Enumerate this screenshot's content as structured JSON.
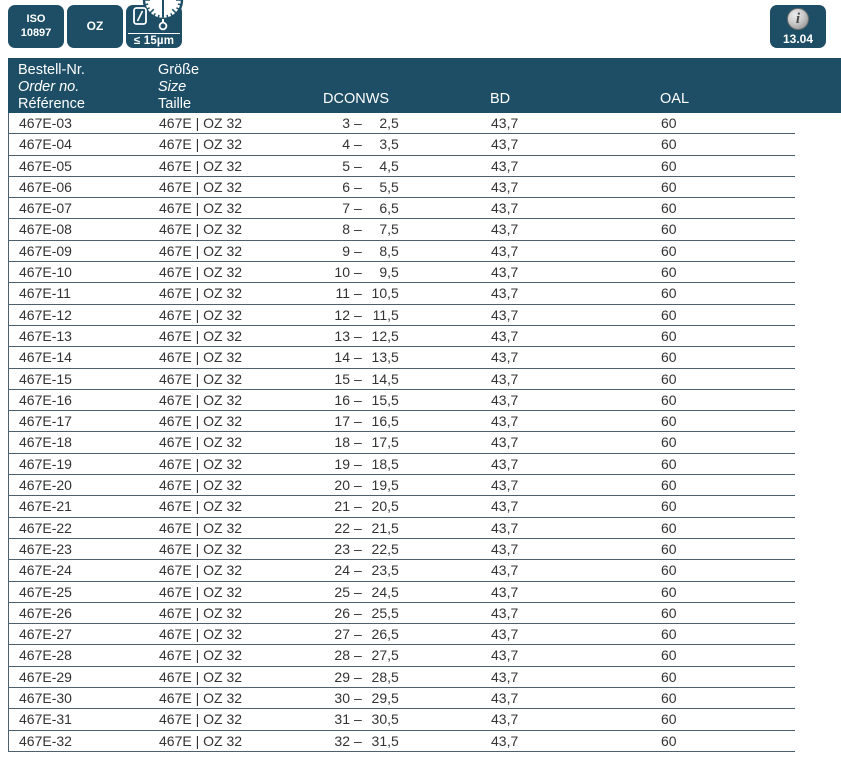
{
  "colors": {
    "navy": "#1d4e66"
  },
  "badges": {
    "iso": {
      "line1": "ISO",
      "line2": "10897"
    },
    "oz": "OZ",
    "runout_limit": "≤ 15µm",
    "info_symbol": "i",
    "info_version": "13.04"
  },
  "table": {
    "header": {
      "order": [
        "Bestell-Nr.",
        "Order no.",
        "Référence"
      ],
      "size": [
        "Größe",
        "Size",
        "Taille"
      ],
      "dconws": "DCONWS",
      "bd": "BD",
      "oal": "OAL"
    },
    "dash": "–",
    "rows": [
      {
        "order_no": "467E-03",
        "size": "467E | OZ 32",
        "from": "3",
        "to": "2,5",
        "bd": "43,7",
        "oal": "60"
      },
      {
        "order_no": "467E-04",
        "size": "467E | OZ 32",
        "from": "4",
        "to": "3,5",
        "bd": "43,7",
        "oal": "60"
      },
      {
        "order_no": "467E-05",
        "size": "467E | OZ 32",
        "from": "5",
        "to": "4,5",
        "bd": "43,7",
        "oal": "60"
      },
      {
        "order_no": "467E-06",
        "size": "467E | OZ 32",
        "from": "6",
        "to": "5,5",
        "bd": "43,7",
        "oal": "60"
      },
      {
        "order_no": "467E-07",
        "size": "467E | OZ 32",
        "from": "7",
        "to": "6,5",
        "bd": "43,7",
        "oal": "60"
      },
      {
        "order_no": "467E-08",
        "size": "467E | OZ 32",
        "from": "8",
        "to": "7,5",
        "bd": "43,7",
        "oal": "60"
      },
      {
        "order_no": "467E-09",
        "size": "467E | OZ 32",
        "from": "9",
        "to": "8,5",
        "bd": "43,7",
        "oal": "60"
      },
      {
        "order_no": "467E-10",
        "size": "467E | OZ 32",
        "from": "10",
        "to": "9,5",
        "bd": "43,7",
        "oal": "60"
      },
      {
        "order_no": "467E-11",
        "size": "467E | OZ 32",
        "from": "11",
        "to": "10,5",
        "bd": "43,7",
        "oal": "60"
      },
      {
        "order_no": "467E-12",
        "size": "467E | OZ 32",
        "from": "12",
        "to": "11,5",
        "bd": "43,7",
        "oal": "60"
      },
      {
        "order_no": "467E-13",
        "size": "467E | OZ 32",
        "from": "13",
        "to": "12,5",
        "bd": "43,7",
        "oal": "60"
      },
      {
        "order_no": "467E-14",
        "size": "467E | OZ 32",
        "from": "14",
        "to": "13,5",
        "bd": "43,7",
        "oal": "60"
      },
      {
        "order_no": "467E-15",
        "size": "467E | OZ 32",
        "from": "15",
        "to": "14,5",
        "bd": "43,7",
        "oal": "60"
      },
      {
        "order_no": "467E-16",
        "size": "467E | OZ 32",
        "from": "16",
        "to": "15,5",
        "bd": "43,7",
        "oal": "60"
      },
      {
        "order_no": "467E-17",
        "size": "467E | OZ 32",
        "from": "17",
        "to": "16,5",
        "bd": "43,7",
        "oal": "60"
      },
      {
        "order_no": "467E-18",
        "size": "467E | OZ 32",
        "from": "18",
        "to": "17,5",
        "bd": "43,7",
        "oal": "60"
      },
      {
        "order_no": "467E-19",
        "size": "467E | OZ 32",
        "from": "19",
        "to": "18,5",
        "bd": "43,7",
        "oal": "60"
      },
      {
        "order_no": "467E-20",
        "size": "467E | OZ 32",
        "from": "20",
        "to": "19,5",
        "bd": "43,7",
        "oal": "60"
      },
      {
        "order_no": "467E-21",
        "size": "467E | OZ 32",
        "from": "21",
        "to": "20,5",
        "bd": "43,7",
        "oal": "60"
      },
      {
        "order_no": "467E-22",
        "size": "467E | OZ 32",
        "from": "22",
        "to": "21,5",
        "bd": "43,7",
        "oal": "60"
      },
      {
        "order_no": "467E-23",
        "size": "467E | OZ 32",
        "from": "23",
        "to": "22,5",
        "bd": "43,7",
        "oal": "60"
      },
      {
        "order_no": "467E-24",
        "size": "467E | OZ 32",
        "from": "24",
        "to": "23,5",
        "bd": "43,7",
        "oal": "60"
      },
      {
        "order_no": "467E-25",
        "size": "467E | OZ 32",
        "from": "25",
        "to": "24,5",
        "bd": "43,7",
        "oal": "60"
      },
      {
        "order_no": "467E-26",
        "size": "467E | OZ 32",
        "from": "26",
        "to": "25,5",
        "bd": "43,7",
        "oal": "60"
      },
      {
        "order_no": "467E-27",
        "size": "467E | OZ 32",
        "from": "27",
        "to": "26,5",
        "bd": "43,7",
        "oal": "60"
      },
      {
        "order_no": "467E-28",
        "size": "467E | OZ 32",
        "from": "28",
        "to": "27,5",
        "bd": "43,7",
        "oal": "60"
      },
      {
        "order_no": "467E-29",
        "size": "467E | OZ 32",
        "from": "29",
        "to": "28,5",
        "bd": "43,7",
        "oal": "60"
      },
      {
        "order_no": "467E-30",
        "size": "467E | OZ 32",
        "from": "30",
        "to": "29,5",
        "bd": "43,7",
        "oal": "60"
      },
      {
        "order_no": "467E-31",
        "size": "467E | OZ 32",
        "from": "31",
        "to": "30,5",
        "bd": "43,7",
        "oal": "60"
      },
      {
        "order_no": "467E-32",
        "size": "467E | OZ 32",
        "from": "32",
        "to": "31,5",
        "bd": "43,7",
        "oal": "60"
      }
    ]
  }
}
